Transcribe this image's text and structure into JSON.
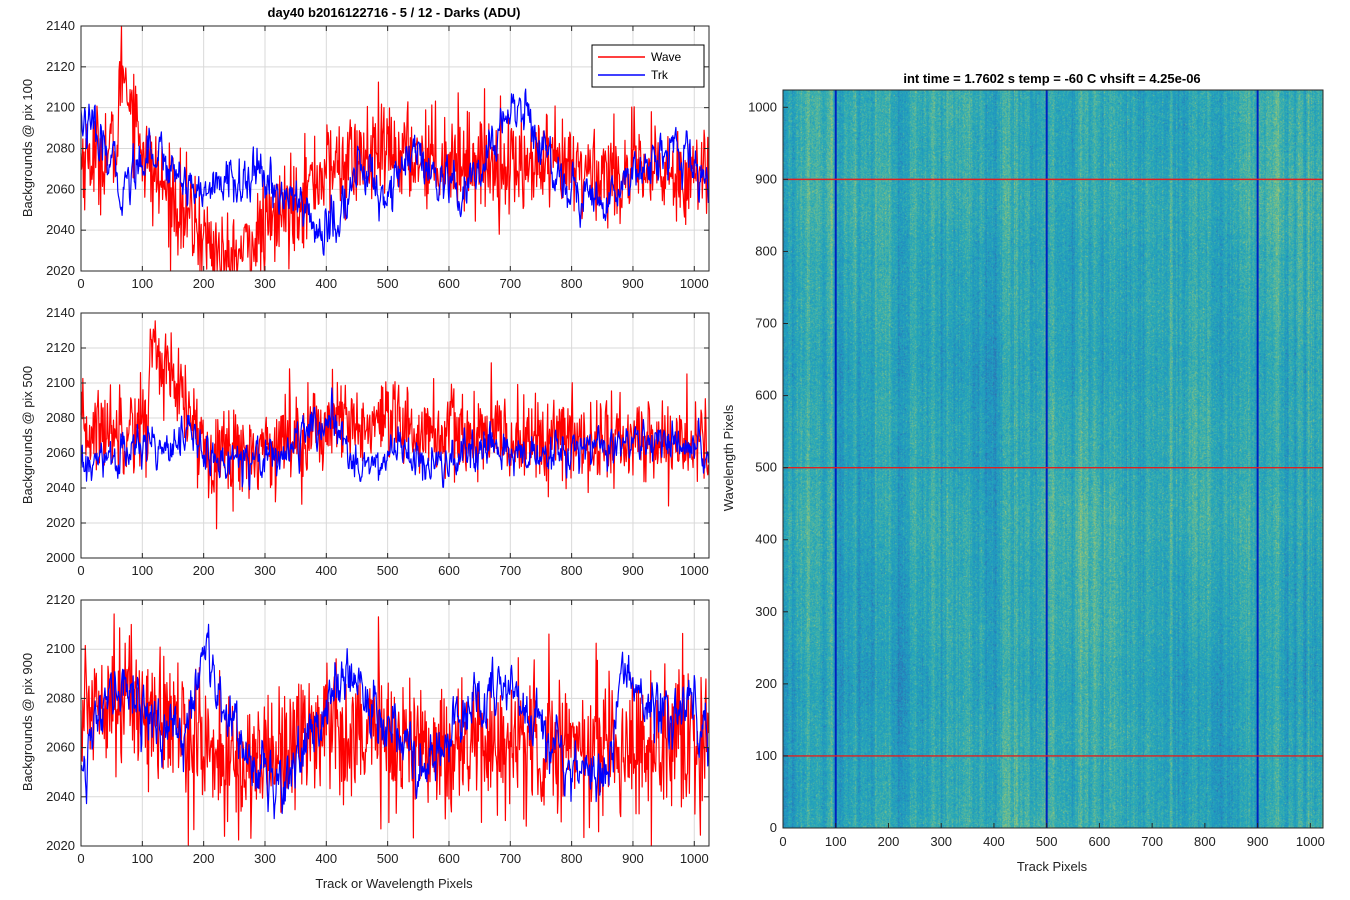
{
  "chart_data": [
    {
      "type": "line",
      "title": "day40 b2016122716 - 5 / 12 - Darks (ADU)",
      "xlabel": "",
      "ylabel": "Backgrounds @ pix 100",
      "xlim": [
        0,
        1024
      ],
      "ylim": [
        2020,
        2140
      ],
      "xticks": [
        0,
        100,
        200,
        300,
        400,
        500,
        600,
        700,
        800,
        900,
        1000
      ],
      "yticks": [
        2020,
        2040,
        2060,
        2080,
        2100,
        2120,
        2140
      ],
      "grid": true,
      "legend": {
        "position": "top-right",
        "entries": [
          "Wave",
          "Trk"
        ]
      },
      "series": [
        {
          "name": "Wave",
          "color": "#ff0000",
          "mean": 2070,
          "amplitude": 12,
          "n": 1024,
          "anchors": [
            [
              0,
              2075
            ],
            [
              60,
              2080
            ],
            [
              65,
              2124
            ],
            [
              110,
              2070
            ],
            [
              240,
              2022
            ],
            [
              400,
              2070
            ],
            [
              500,
              2078
            ],
            [
              700,
              2072
            ],
            [
              850,
              2068
            ],
            [
              1024,
              2068
            ]
          ]
        },
        {
          "name": "Trk",
          "color": "#0000ff",
          "mean": 2070,
          "amplitude": 5,
          "n": 1024,
          "anchors": [
            [
              0,
              2095
            ],
            [
              30,
              2082
            ],
            [
              70,
              2060
            ],
            [
              110,
              2082
            ],
            [
              150,
              2070
            ],
            [
              200,
              2058
            ],
            [
              250,
              2065
            ],
            [
              300,
              2064
            ],
            [
              330,
              2058
            ],
            [
              360,
              2052
            ],
            [
              390,
              2038
            ],
            [
              420,
              2044
            ],
            [
              450,
              2070
            ],
            [
              500,
              2058
            ],
            [
              540,
              2078
            ],
            [
              580,
              2062
            ],
            [
              620,
              2055
            ],
            [
              660,
              2072
            ],
            [
              700,
              2102
            ],
            [
              730,
              2096
            ],
            [
              760,
              2075
            ],
            [
              800,
              2060
            ],
            [
              850,
              2052
            ],
            [
              900,
              2070
            ],
            [
              950,
              2078
            ],
            [
              1000,
              2072
            ],
            [
              1024,
              2060
            ]
          ]
        }
      ]
    },
    {
      "type": "line",
      "title": "",
      "xlabel": "",
      "ylabel": "Backgrounds @ pix 500",
      "xlim": [
        0,
        1024
      ],
      "ylim": [
        2000,
        2140
      ],
      "xticks": [
        0,
        100,
        200,
        300,
        400,
        500,
        600,
        700,
        800,
        900,
        1000
      ],
      "yticks": [
        2000,
        2020,
        2040,
        2060,
        2080,
        2100,
        2120,
        2140
      ],
      "grid": true,
      "series": [
        {
          "name": "Wave",
          "color": "#ff0000",
          "mean": 2068,
          "amplitude": 13,
          "n": 1024,
          "anchors": [
            [
              0,
              2072
            ],
            [
              110,
              2078
            ],
            [
              114,
              2125
            ],
            [
              200,
              2064
            ],
            [
              270,
              2060
            ],
            [
              400,
              2076
            ],
            [
              500,
              2074
            ],
            [
              700,
              2068
            ],
            [
              1024,
              2066
            ]
          ]
        },
        {
          "name": "Trk",
          "color": "#0000ff",
          "mean": 2060,
          "amplitude": 5,
          "n": 1024,
          "anchors": [
            [
              0,
              2050
            ],
            [
              60,
              2058
            ],
            [
              120,
              2066
            ],
            [
              180,
              2070
            ],
            [
              220,
              2052
            ],
            [
              260,
              2060
            ],
            [
              320,
              2058
            ],
            [
              400,
              2078
            ],
            [
              440,
              2060
            ],
            [
              480,
              2050
            ],
            [
              520,
              2066
            ],
            [
              560,
              2050
            ],
            [
              640,
              2058
            ],
            [
              700,
              2062
            ],
            [
              760,
              2055
            ],
            [
              820,
              2064
            ],
            [
              880,
              2062
            ],
            [
              940,
              2068
            ],
            [
              1000,
              2060
            ],
            [
              1024,
              2055
            ]
          ]
        }
      ]
    },
    {
      "type": "line",
      "title": "",
      "xlabel": "Track or Wavelength Pixels",
      "ylabel": "Backgrounds @ pix 900",
      "xlim": [
        0,
        1024
      ],
      "ylim": [
        2020,
        2120
      ],
      "xticks": [
        0,
        100,
        200,
        300,
        400,
        500,
        600,
        700,
        800,
        900,
        1000
      ],
      "yticks": [
        2020,
        2040,
        2060,
        2080,
        2100,
        2120
      ],
      "grid": true,
      "series": [
        {
          "name": "Wave",
          "color": "#ff0000",
          "mean": 2068,
          "amplitude": 14,
          "n": 1024,
          "anchors": [
            [
              0,
              2072
            ],
            [
              40,
              2085
            ],
            [
              200,
              2062
            ],
            [
              250,
              2050
            ],
            [
              400,
              2070
            ],
            [
              560,
              2060
            ],
            [
              800,
              2062
            ],
            [
              1024,
              2060
            ]
          ]
        },
        {
          "name": "Trk",
          "color": "#0000ff",
          "mean": 2068,
          "amplitude": 5,
          "n": 1024,
          "anchors": [
            [
              0,
              2055
            ],
            [
              40,
              2075
            ],
            [
              70,
              2088
            ],
            [
              110,
              2072
            ],
            [
              160,
              2062
            ],
            [
              200,
              2096
            ],
            [
              240,
              2075
            ],
            [
              280,
              2055
            ],
            [
              320,
              2044
            ],
            [
              360,
              2060
            ],
            [
              400,
              2075
            ],
            [
              440,
              2090
            ],
            [
              480,
              2075
            ],
            [
              520,
              2068
            ],
            [
              560,
              2048
            ],
            [
              600,
              2065
            ],
            [
              640,
              2078
            ],
            [
              700,
              2082
            ],
            [
              760,
              2070
            ],
            [
              800,
              2052
            ],
            [
              860,
              2048
            ],
            [
              880,
              2094
            ],
            [
              920,
              2078
            ],
            [
              960,
              2072
            ],
            [
              1000,
              2082
            ],
            [
              1024,
              2066
            ]
          ]
        }
      ]
    },
    {
      "type": "heatmap",
      "title": "int time = 1.7602 s   temp = -60 C   vhsift = 4.25e-06",
      "xlabel": "Track Pixels",
      "ylabel": "Wavelength Pixels",
      "xlim": [
        0,
        1024
      ],
      "ylim": [
        0,
        1024
      ],
      "xticks": [
        0,
        100,
        200,
        300,
        400,
        500,
        600,
        700,
        800,
        900,
        1000
      ],
      "yticks": [
        0,
        100,
        200,
        300,
        400,
        500,
        600,
        700,
        800,
        900,
        1000
      ],
      "colormap": [
        "#2f6fb3",
        "#1f93c2",
        "#27a8b8",
        "#5cb89a",
        "#a9c86a"
      ],
      "vertical_lines": {
        "x": [
          100,
          500,
          900
        ],
        "color": "#0020c0"
      },
      "horizontal_lines": {
        "y": [
          100,
          500,
          900
        ],
        "color": "#e02020"
      }
    }
  ]
}
